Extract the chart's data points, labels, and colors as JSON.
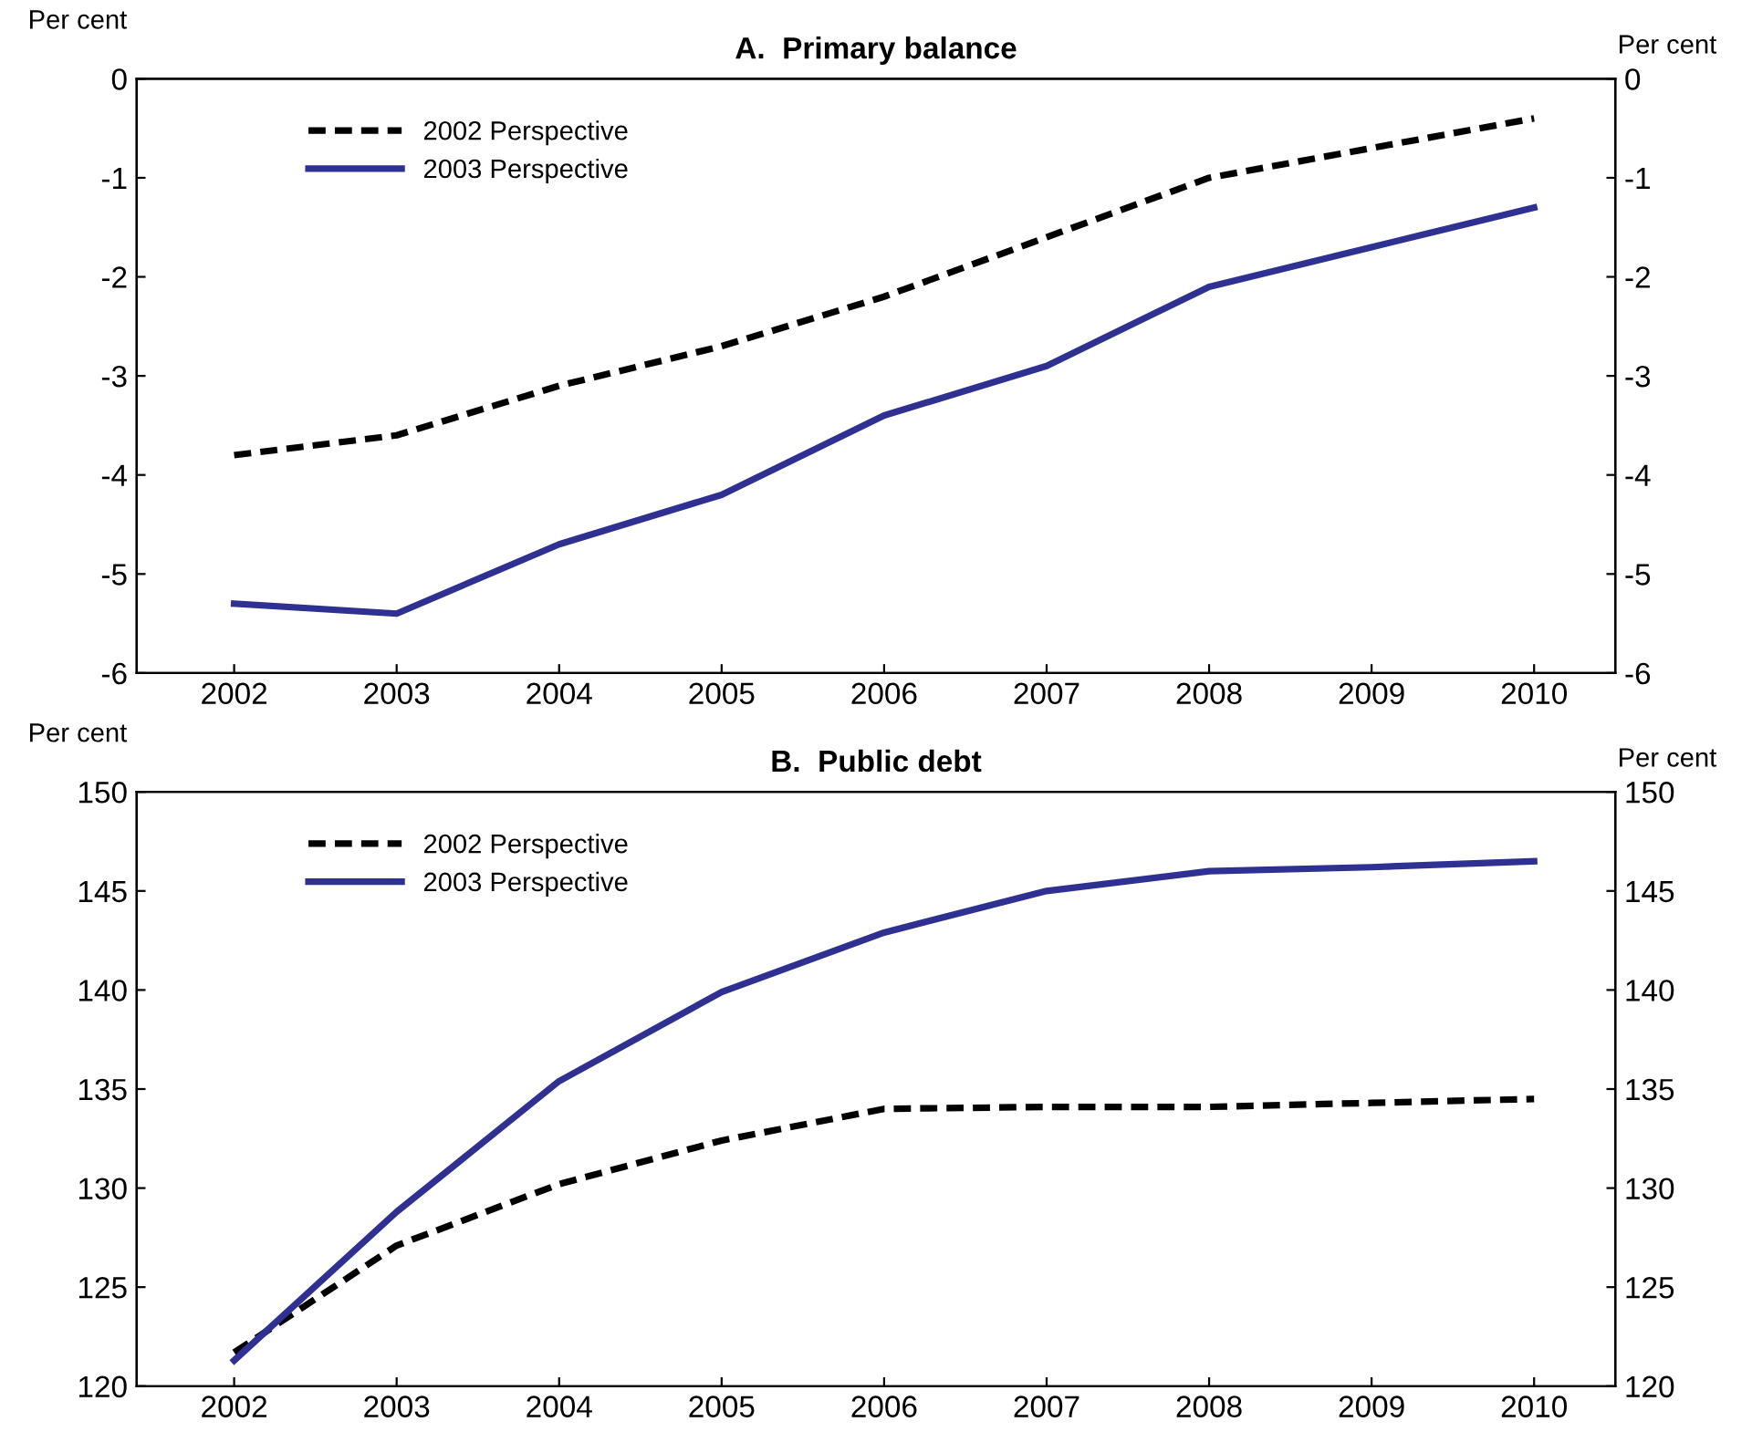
{
  "chart_data": [
    {
      "type": "line",
      "title": "A.  Primary balance",
      "ylabel": "Per cent",
      "y2label": "Per cent",
      "categories": [
        "2002",
        "2003",
        "2004",
        "2005",
        "2006",
        "2007",
        "2008",
        "2009",
        "2010"
      ],
      "series": [
        {
          "name": "2002 Perspective",
          "color": "#000000",
          "line_style": "dashed",
          "values": [
            -3.8,
            -3.6,
            -3.1,
            -2.7,
            -2.2,
            -1.6,
            -1.0,
            -0.7,
            -0.4
          ]
        },
        {
          "name": "2003 Perspective",
          "color": "#2e3192",
          "line_style": "solid",
          "values": [
            -5.3,
            -5.4,
            -4.7,
            -4.2,
            -3.4,
            -2.9,
            -2.1,
            -1.7,
            -1.3
          ]
        }
      ],
      "ylim": [
        -6,
        0
      ],
      "yticks": [
        -6,
        -5,
        -4,
        -3,
        -2,
        -1,
        0
      ],
      "y2lim": [
        -6,
        0
      ],
      "y2ticks": [
        -6,
        -5,
        -4,
        -3,
        -2,
        -1,
        0
      ],
      "grid": false,
      "legend": "top left"
    },
    {
      "type": "line",
      "title": "B.  Public debt",
      "ylabel": "Per cent",
      "y2label": "Per cent",
      "categories": [
        "2002",
        "2003",
        "2004",
        "2005",
        "2006",
        "2007",
        "2008",
        "2009",
        "2010"
      ],
      "series": [
        {
          "name": "2002 Perspective",
          "color": "#000000",
          "line_style": "dashed",
          "values": [
            121.7,
            127.1,
            130.2,
            132.4,
            134.0,
            134.1,
            134.1,
            134.3,
            134.5
          ]
        },
        {
          "name": "2003 Perspective",
          "color": "#2e3192",
          "line_style": "solid",
          "values": [
            121.3,
            128.8,
            135.4,
            139.9,
            142.9,
            145.0,
            146.0,
            146.2,
            146.5
          ]
        }
      ],
      "ylim": [
        120,
        150
      ],
      "yticks": [
        120,
        125,
        130,
        135,
        140,
        145,
        150
      ],
      "y2lim": [
        120,
        150
      ],
      "y2ticks": [
        120,
        125,
        130,
        135,
        140,
        145,
        150
      ],
      "grid": false,
      "legend": "top left"
    }
  ]
}
